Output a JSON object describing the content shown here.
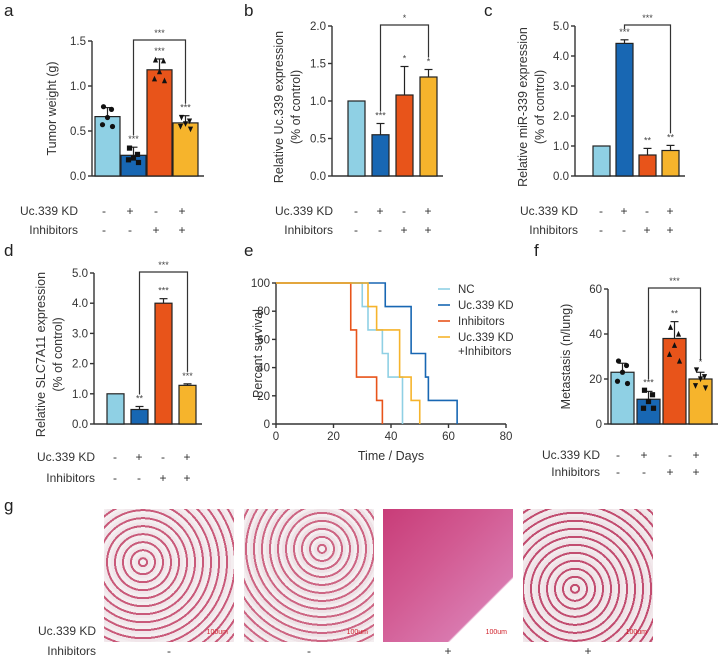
{
  "conditions": {
    "row_labels": [
      "Uc.339 KD",
      "Inhibitors"
    ],
    "uc339_kd": [
      "-",
      "+",
      "-",
      "+"
    ],
    "inhibitors": [
      "-",
      "-",
      "+",
      "+"
    ]
  },
  "colors": {
    "NC": "#8fd0e4",
    "Uc.339 KD": "#1867b3",
    "Inhibitors": "#e8541a",
    "Uc.339 KD+Inhibitors": "#f6b42c"
  },
  "chart_data": [
    {
      "panel": "a",
      "type": "bar",
      "ylabel": "Tumor weight (g)",
      "ylim": [
        0,
        1.5
      ],
      "yticks": [
        "0.0",
        "0.5",
        "1.0",
        "1.5"
      ],
      "groups": [
        "NC",
        "Uc.339 KD",
        "Inhibitors",
        "Uc.339 KD+Inhibitors"
      ],
      "values": [
        0.66,
        0.23,
        1.18,
        0.59
      ],
      "errors": [
        0.1,
        0.09,
        0.12,
        0.08
      ],
      "points": [
        [
          0.77,
          0.74,
          0.65,
          0.57,
          0.55
        ],
        [
          0.31,
          0.24,
          0.2,
          0.18,
          0.15
        ],
        [
          1.29,
          1.28,
          1.16,
          1.08,
          1.06
        ],
        [
          0.65,
          0.61,
          0.58,
          0.55,
          0.52
        ]
      ],
      "markers": [
        "circle",
        "square",
        "triangle-up",
        "triangle-down"
      ],
      "significance": [
        "",
        "***",
        "***",
        "***"
      ],
      "bracket": {
        "from": 1,
        "to": 3,
        "label": "***"
      }
    },
    {
      "panel": "b",
      "type": "bar",
      "ylabel": "Relative Uc.339 expression\n(% of control)",
      "ylim": [
        0,
        2.0
      ],
      "yticks": [
        "0.0",
        "0.5",
        "1.0",
        "1.5",
        "2.0"
      ],
      "groups": [
        "NC",
        "Uc.339 KD",
        "Inhibitors",
        "Uc.339 KD+Inhibitors"
      ],
      "values": [
        1.0,
        0.55,
        1.08,
        1.32
      ],
      "errors": [
        0,
        0.15,
        0.38,
        0.1
      ],
      "significance": [
        "",
        "***",
        "*",
        "*"
      ],
      "bracket": {
        "from": 1,
        "to": 3,
        "label": "*"
      }
    },
    {
      "panel": "c",
      "type": "bar",
      "ylabel": "Relative miR-339 expression\n(% of control)",
      "ylim": [
        0,
        5.0
      ],
      "yticks": [
        "0.0",
        "1.0",
        "2.0",
        "3.0",
        "4.0",
        "5.0"
      ],
      "groups": [
        "NC",
        "Uc.339 KD",
        "Inhibitors",
        "Uc.339 KD+Inhibitors"
      ],
      "values": [
        1.0,
        4.42,
        0.7,
        0.85
      ],
      "errors": [
        0,
        0.12,
        0.22,
        0.17
      ],
      "significance": [
        "",
        "***",
        "**",
        "**"
      ],
      "bracket": {
        "from": 1,
        "to": 3,
        "label": "***"
      }
    },
    {
      "panel": "d",
      "type": "bar",
      "ylabel": "Relative SLC7A11 expression\n(% of control)",
      "ylim": [
        0,
        5.0
      ],
      "yticks": [
        "0.0",
        "1.0",
        "2.0",
        "3.0",
        "4.0",
        "5.0"
      ],
      "groups": [
        "NC",
        "Uc.339 KD",
        "Inhibitors",
        "Uc.339 KD+Inhibitors"
      ],
      "values": [
        1.0,
        0.48,
        4.0,
        1.28
      ],
      "errors": [
        0,
        0.1,
        0.15,
        0.05
      ],
      "significance": [
        "",
        "**",
        "***",
        "***"
      ],
      "bracket": {
        "from": 1,
        "to": 3,
        "label": "***"
      }
    },
    {
      "panel": "e",
      "type": "line",
      "subtype": "kaplan-meier step",
      "ylabel": "Percent survival",
      "xlabel": "Time / Days",
      "xlim": [
        0,
        80
      ],
      "ylim": [
        0,
        100
      ],
      "xticks": [
        "0",
        "20",
        "40",
        "60",
        "80"
      ],
      "yticks": [
        "0",
        "20",
        "40",
        "60",
        "80",
        "100"
      ],
      "legend_position": "top-right",
      "series": [
        {
          "name": "NC",
          "steps": [
            [
              0,
              100
            ],
            [
              30,
              83.3
            ],
            [
              32,
              66.7
            ],
            [
              37,
              50
            ],
            [
              39,
              33.3
            ],
            [
              44,
              0
            ]
          ]
        },
        {
          "name": "Uc.339 KD",
          "steps": [
            [
              0,
              100
            ],
            [
              38,
              83.3
            ],
            [
              47,
              50
            ],
            [
              52,
              33.3
            ],
            [
              53,
              16.7
            ],
            [
              63,
              0
            ]
          ]
        },
        {
          "name": "Inhibitors",
          "steps": [
            [
              0,
              100
            ],
            [
              26,
              66.7
            ],
            [
              28,
              33.3
            ],
            [
              35,
              16.7
            ],
            [
              37,
              0
            ]
          ]
        },
        {
          "name": "Uc.339 KD\n+Inhibitors",
          "steps": [
            [
              0,
              100
            ],
            [
              32,
              83.3
            ],
            [
              35,
              66.7
            ],
            [
              43,
              33.3
            ],
            [
              47,
              16.7
            ],
            [
              50,
              0
            ]
          ]
        }
      ]
    },
    {
      "panel": "f",
      "type": "bar",
      "ylabel": "Metastasis (n/lung)",
      "ylim": [
        0,
        60
      ],
      "yticks": [
        "0",
        "20",
        "40",
        "60"
      ],
      "groups": [
        "NC",
        "Uc.339 KD",
        "Inhibitors",
        "Uc.339 KD+Inhibitors"
      ],
      "values": [
        23,
        11,
        38,
        20
      ],
      "errors": [
        4,
        3.5,
        7.5,
        3
      ],
      "points": [
        [
          28,
          26,
          23,
          19,
          18
        ],
        [
          15,
          13,
          10,
          7,
          7
        ],
        [
          43,
          40,
          35,
          31,
          28
        ],
        [
          24,
          21,
          20,
          17,
          16
        ]
      ],
      "markers": [
        "circle",
        "square",
        "triangle-up",
        "triangle-down"
      ],
      "significance": [
        "",
        "***",
        "**",
        "*"
      ],
      "bracket": {
        "from": 1,
        "to": 3,
        "label": "***"
      }
    }
  ],
  "panel_g": {
    "label": "g",
    "images": [
      {
        "name": "NC lung HE section",
        "scale_bar": "100um"
      },
      {
        "name": "Uc.339 KD lung HE section",
        "scale_bar": "100um"
      },
      {
        "name": "Inhibitors lung HE section",
        "scale_bar": "100um"
      },
      {
        "name": "Uc.339 KD + Inhibitors lung HE section",
        "scale_bar": "100um"
      }
    ]
  }
}
